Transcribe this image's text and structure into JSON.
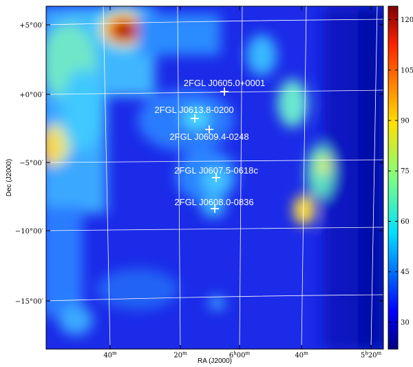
{
  "chart_data": {
    "type": "heatmap",
    "colormap": "jet",
    "xlabel": "RA (J2000)",
    "ylabel": "Dec (J2000)",
    "x_ticks": [
      {
        "label": "40",
        "sup": "m"
      },
      {
        "label": "20",
        "sup": "m"
      },
      {
        "label": "6",
        "sup": "h",
        "label2": "00",
        "sup2": "m"
      },
      {
        "label": "40",
        "sup": "m"
      },
      {
        "label": "5",
        "sup": "h",
        "label2": "20",
        "sup2": "m"
      }
    ],
    "y_ticks": [
      {
        "label": "+5°00′"
      },
      {
        "label": "+0°00′"
      },
      {
        "label": "−5°00′"
      },
      {
        "label": "−10°00′"
      },
      {
        "label": "−15°00′"
      }
    ],
    "colorbar": {
      "ticks": [
        "120",
        "105",
        "90",
        "75",
        "60",
        "45",
        "30"
      ],
      "range": [
        22,
        124
      ]
    },
    "grid": true,
    "sources": [
      {
        "name": "2FGL J0605.0+0001"
      },
      {
        "name": "2FGL J0613.8-0200"
      },
      {
        "name": "2FGL J0609.4-0248"
      },
      {
        "name": "2FGL J0607.5-0618c"
      },
      {
        "name": "2FGL J0608.0-0836"
      }
    ]
  }
}
